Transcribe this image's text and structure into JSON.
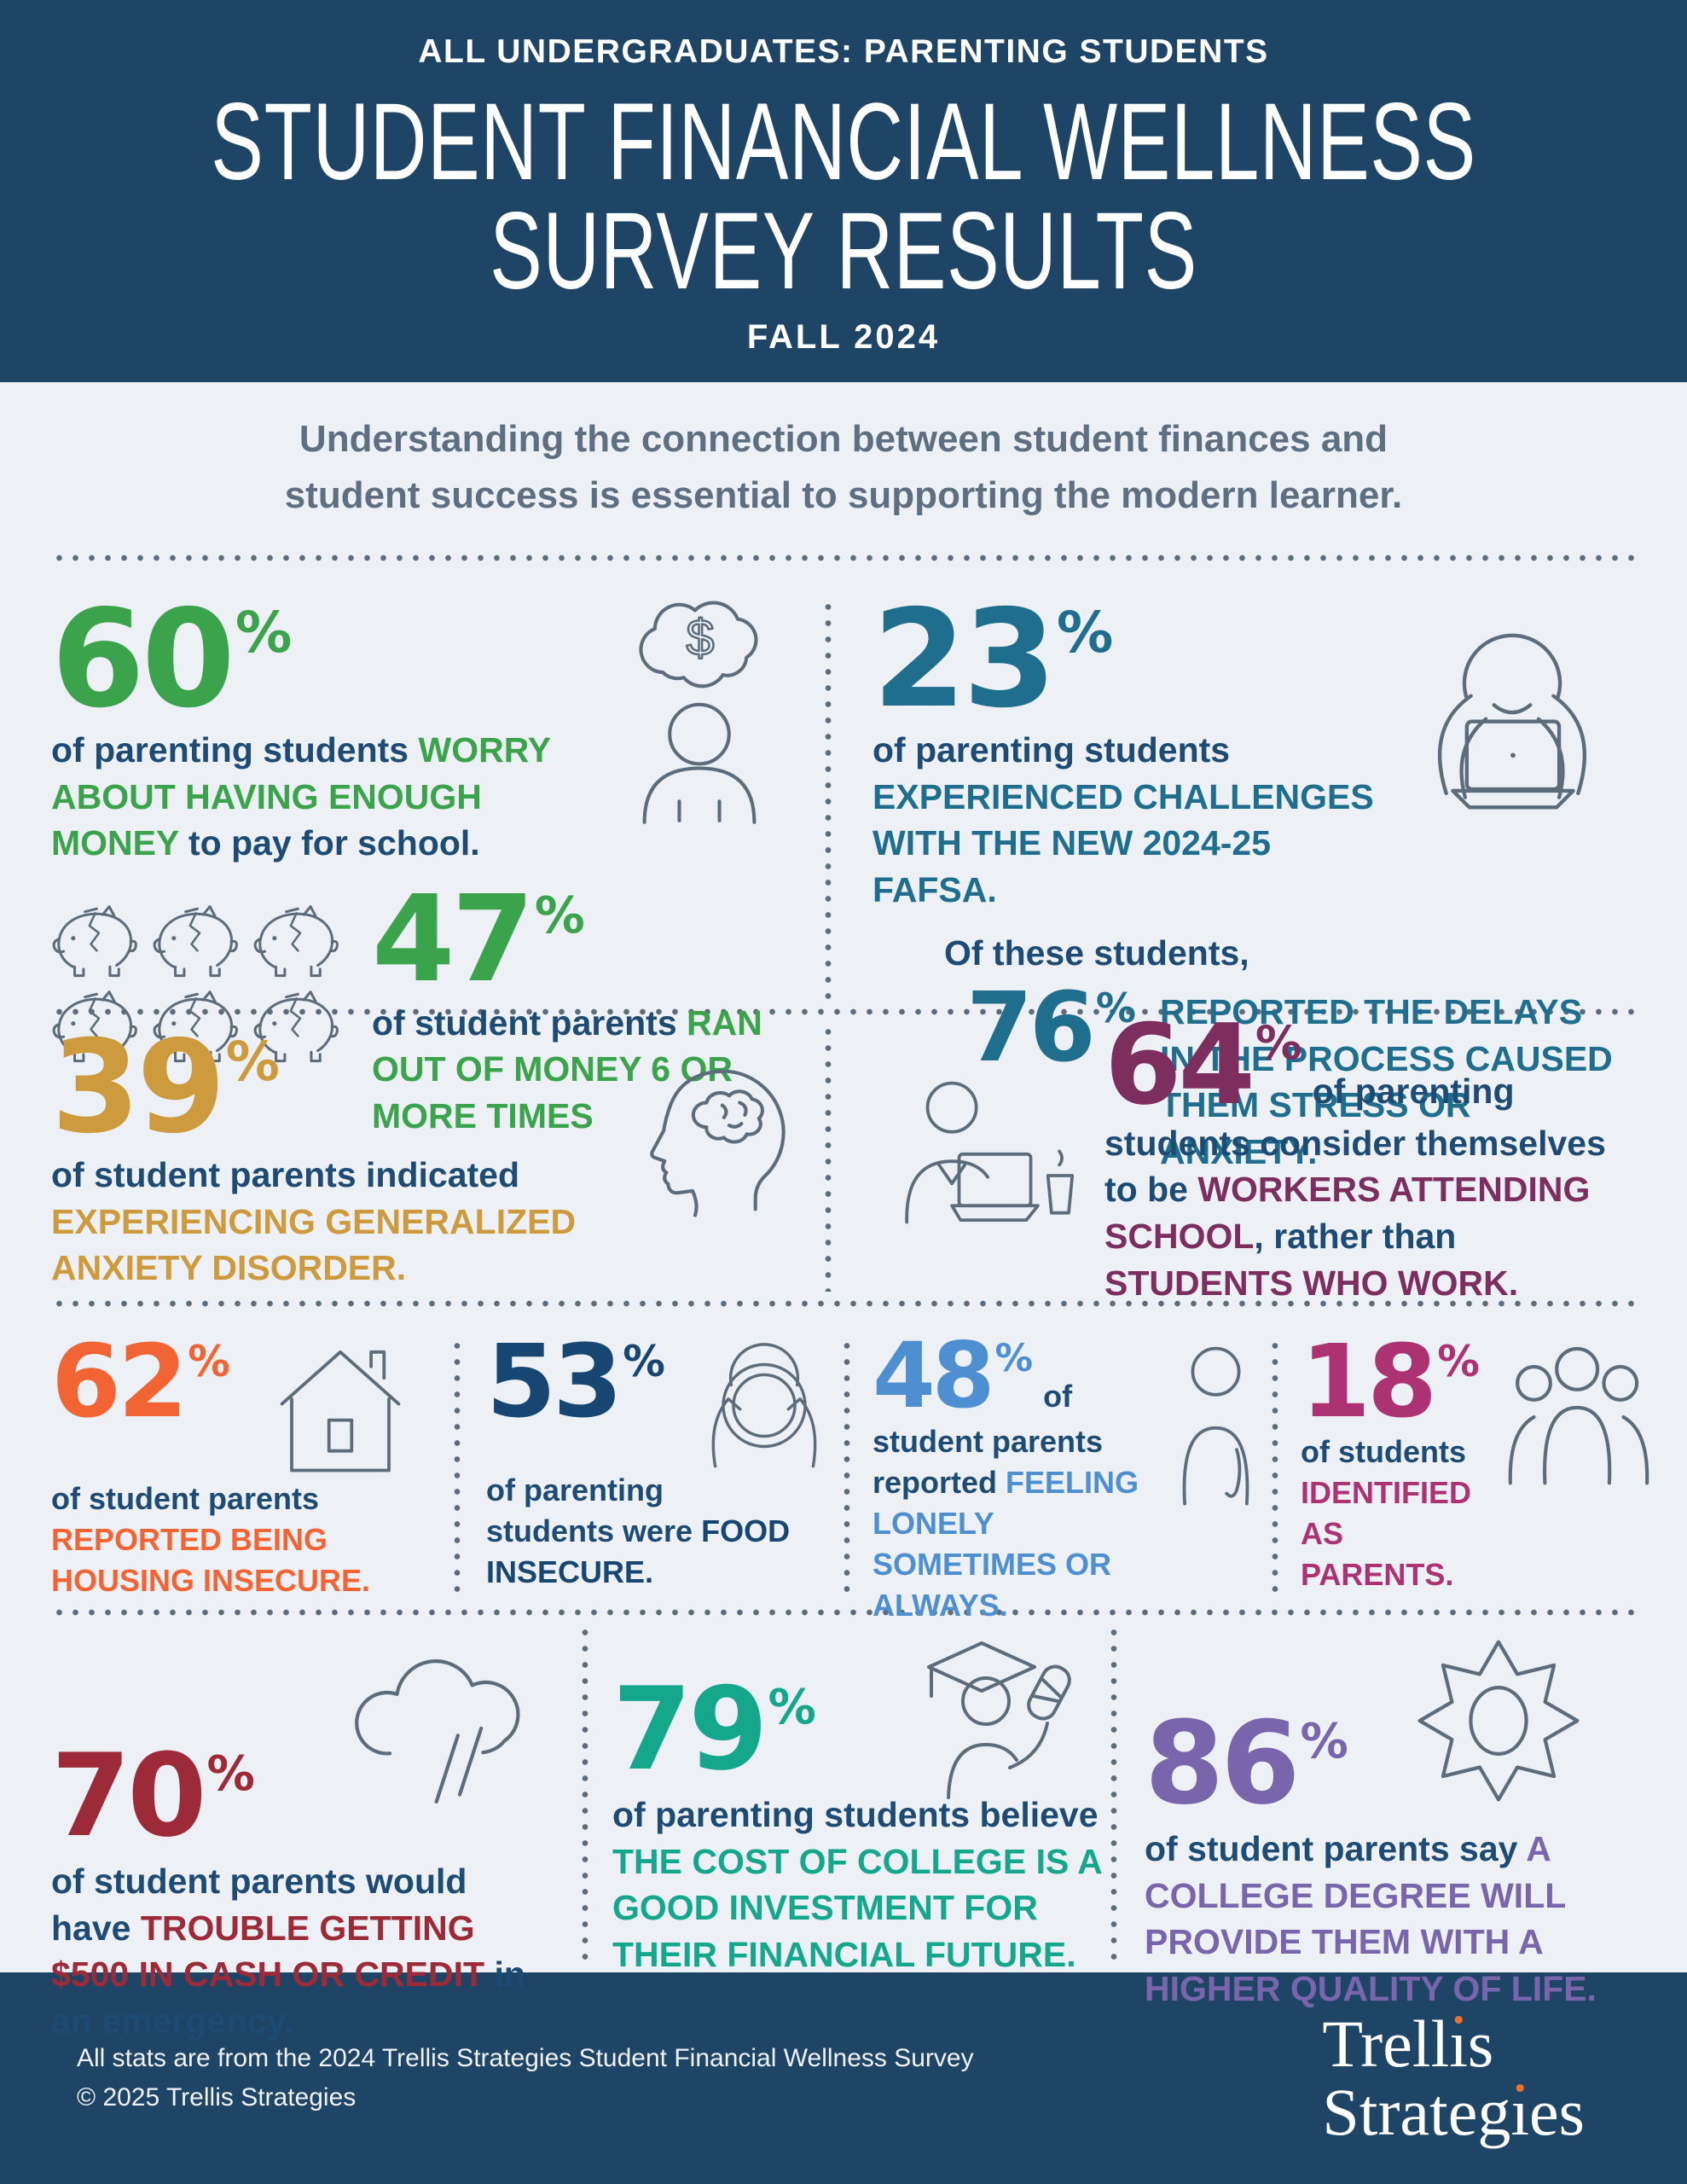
{
  "colors": {
    "hero_bg": "#1e4565",
    "page_bg": "#edf1f5",
    "text_navy": "#1d4b73",
    "intro_gray": "#5d6f80",
    "icon_gray": "#5d6c7b",
    "dot_gray": "#5d6c7b",
    "green": "#3aa34c",
    "teal": "#1f6e8e",
    "gold": "#cd9a3d",
    "plum": "#7c2e5f",
    "orange": "#f26433",
    "food_navy": "#164671",
    "light_blue": "#4d8fd1",
    "berry": "#ac3273",
    "maroon": "#9c2a38",
    "teal_green": "#15a78c",
    "purple": "#7865ab",
    "logo_dot_orange": "#e8722c",
    "footer_text": "#eef2f6"
  },
  "header": {
    "kicker": "ALL UNDERGRADUATES: PARENTING STUDENTS",
    "title_line1": "STUDENT FINANCIAL WELLNESS",
    "title_line2": "SURVEY RESULTS",
    "subtitle": "FALL 2024"
  },
  "intro": {
    "text": "Understanding the connection between student finances and student success is essential to supporting the modern learner."
  },
  "stats": {
    "worry": {
      "value": "60",
      "unit": "%",
      "seg1": "of parenting students ",
      "em1": "WORRY ABOUT HAVING ENOUGH MONEY",
      "seg2": " to pay for school."
    },
    "ran_out": {
      "value": "47",
      "unit": "%",
      "seg1": "of student parents ",
      "em1": "RAN OUT OF MONEY 6 OR MORE TIMES"
    },
    "fafsa": {
      "value": "23",
      "unit": "%",
      "seg1": "of parenting students",
      "em1": "EXPERIENCED CHALLENGES WITH THE NEW 2024-25 FAFSA."
    },
    "fafsa_follow": {
      "lead": "Of these students,",
      "value": "76",
      "unit": "%",
      "em1": "REPORTED THE DELAYS IN THE PROCESS CAUSED THEM STRESS OR ANXIETY."
    },
    "anxiety": {
      "value": "39",
      "unit": "%",
      "seg1": "of student parents indicated ",
      "em1": "EXPERIENCING GENERALIZED ANXIETY DISORDER."
    },
    "workers": {
      "value": "64",
      "unit": "%",
      "seg1": "of parenting students consider themselves to be ",
      "em1": "WORKERS ATTENDING SCHOOL",
      "seg2": ", rather than ",
      "em2": "STUDENTS WHO WORK."
    },
    "housing": {
      "value": "62",
      "unit": "%",
      "seg1": "of student parents ",
      "em1": "REPORTED BEING HOUSING INSECURE."
    },
    "food": {
      "value": "53",
      "unit": "%",
      "seg1": "of parenting students were ",
      "em1": "FOOD INSECURE."
    },
    "lonely": {
      "value": "48",
      "unit": "%",
      "seg1": "of student parents reported ",
      "em1": "FEELING LONELY SOMETIMES OR ALWAYS."
    },
    "parents": {
      "value": "18",
      "unit": "%",
      "seg1": "of students ",
      "em1": "IDENTIFIED AS PARENTS."
    },
    "emergency": {
      "value": "70",
      "unit": "%",
      "seg1": "of student parents would have ",
      "em1": "TROUBLE GETTING $500 IN CASH OR CREDIT",
      "seg2": " in an emergency."
    },
    "investment": {
      "value": "79",
      "unit": "%",
      "seg1": "of parenting students believe ",
      "em1": "THE COST OF COLLEGE IS A GOOD INVESTMENT FOR THEIR FINANCIAL FUTURE."
    },
    "degree": {
      "value": "86",
      "unit": "%",
      "seg1": "of student parents say ",
      "em1": "A COLLEGE DEGREE WILL PROVIDE THEM WITH A HIGHER QUALITY OF LIFE."
    }
  },
  "footer": {
    "note_line1": "All stats are from the 2024 Trellis Strategies Student Financial Wellness Survey",
    "note_line2": "© 2025 Trellis Strategies",
    "logo_word1": "Trellis",
    "logo_word2": "Strategies"
  }
}
